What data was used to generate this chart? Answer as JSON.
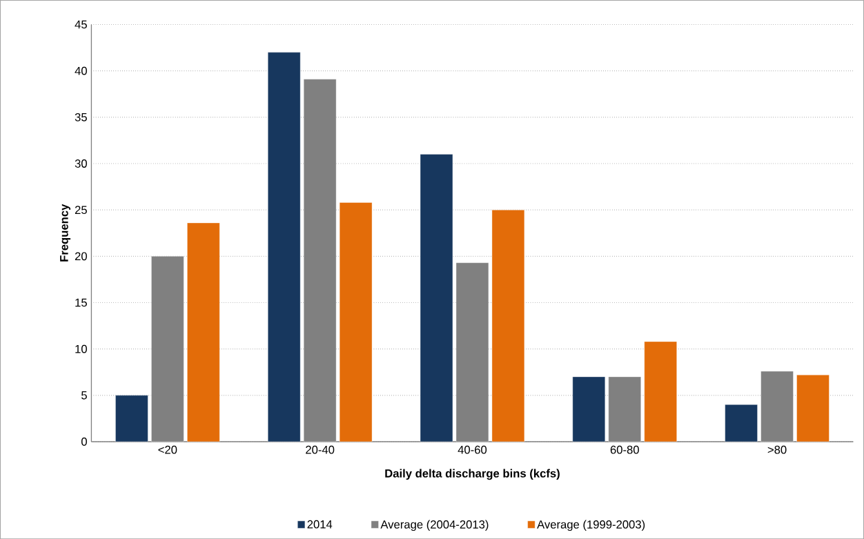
{
  "chart_data": {
    "type": "bar",
    "xlabel": "Daily delta discharge bins (kcfs)",
    "ylabel": "Frequency",
    "categories": [
      "<20",
      "20-40",
      "40-60",
      "60-80",
      ">80"
    ],
    "series": [
      {
        "name": "2014",
        "color": "#17375e",
        "values": [
          5,
          42,
          31,
          7,
          4
        ]
      },
      {
        "name": "Average (2004-2013)",
        "color": "#808080",
        "values": [
          20.0,
          39.1,
          19.3,
          7.0,
          7.6
        ]
      },
      {
        "name": "Average (1999-2003)",
        "color": "#e36c09",
        "values": [
          23.6,
          25.8,
          25.0,
          10.8,
          7.2
        ]
      }
    ],
    "ylim": [
      0,
      45
    ],
    "yticks": [
      0,
      5,
      10,
      15,
      20,
      25,
      30,
      35,
      40,
      45
    ],
    "grid": "y",
    "legend": "bottom"
  }
}
